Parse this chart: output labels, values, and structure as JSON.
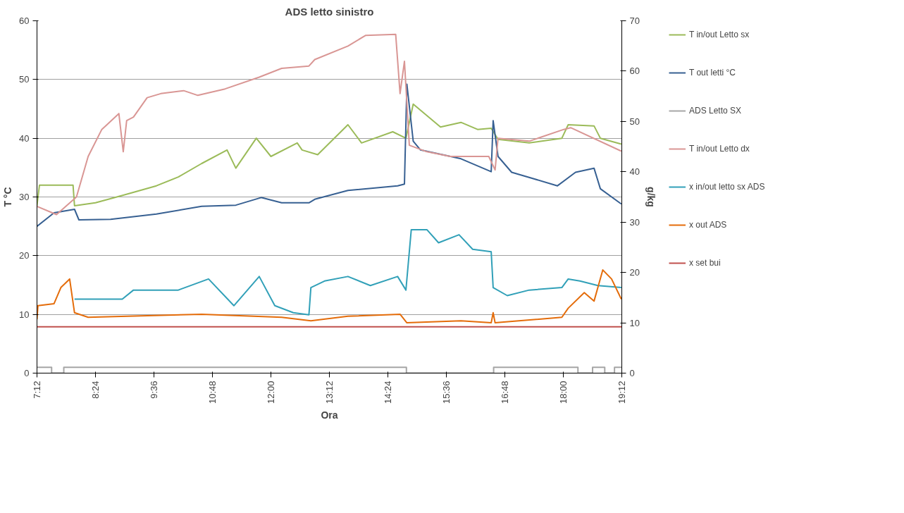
{
  "chart_data": {
    "type": "line",
    "title": "ADS letto sinistro",
    "xlabel": "Ora",
    "ylabel": "T °C",
    "y2label": "g/kg",
    "xlim": [
      7.2,
      19.2
    ],
    "xticks": [
      {
        "value": 7.2,
        "label": "7:12"
      },
      {
        "value": 8.4,
        "label": "8:24"
      },
      {
        "value": 9.6,
        "label": "9:36"
      },
      {
        "value": 10.8,
        "label": "10:48"
      },
      {
        "value": 12.0,
        "label": "12:00"
      },
      {
        "value": 13.2,
        "label": "13:12"
      },
      {
        "value": 14.4,
        "label": "14:24"
      },
      {
        "value": 15.6,
        "label": "15:36"
      },
      {
        "value": 16.8,
        "label": "16:48"
      },
      {
        "value": 18.0,
        "label": "18:00"
      },
      {
        "value": 19.2,
        "label": "19:12"
      }
    ],
    "ylim": [
      0,
      60
    ],
    "yticks": [
      0,
      10,
      20,
      30,
      40,
      50,
      60
    ],
    "y2lim": [
      0,
      70
    ],
    "y2ticks": [
      0,
      10,
      20,
      30,
      40,
      50,
      60,
      70
    ],
    "grid": "y",
    "legend": "right",
    "line_style": "solid",
    "marker": "none",
    "series": [
      {
        "name": "T in/out Letto sx",
        "color": "#9bbb59",
        "x": [
          7.2,
          7.25,
          7.94,
          7.97,
          8.4,
          8.97,
          9.65,
          10.1,
          10.58,
          11.1,
          11.28,
          11.7,
          12.0,
          12.54,
          12.64,
          12.96,
          13.58,
          13.86,
          14.5,
          14.77,
          14.92,
          15.48,
          15.9,
          16.24,
          16.52,
          16.66,
          17.3,
          17.97,
          18.1,
          18.63,
          18.76,
          19.19
        ],
        "values": [
          28.5,
          32,
          32,
          28.5,
          29,
          30.3,
          31.9,
          33.4,
          35.7,
          38,
          34.9,
          40,
          36.9,
          39.2,
          38,
          37.2,
          42.3,
          39.2,
          41.1,
          40,
          45.8,
          41.9,
          42.7,
          41.5,
          41.7,
          39.8,
          39.2,
          40,
          42.3,
          42.1,
          40,
          39
        ]
      },
      {
        "name": "T out letti °C",
        "color": "#376092",
        "x": [
          7.2,
          7.55,
          7.97,
          8.06,
          8.71,
          9.65,
          10.58,
          11.28,
          11.8,
          12.22,
          12.78,
          12.9,
          13.58,
          14.6,
          14.74,
          14.79,
          14.92,
          15.07,
          15.9,
          16.52,
          16.56,
          16.66,
          16.94,
          17.88,
          18.25,
          18.63,
          18.76,
          19.19
        ],
        "values": [
          25,
          27.3,
          27.9,
          26.1,
          26.2,
          27.1,
          28.4,
          28.6,
          29.9,
          29,
          29,
          29.6,
          31.1,
          31.9,
          32.2,
          49.2,
          39.5,
          38,
          36.5,
          34.3,
          43,
          36.9,
          34.2,
          31.9,
          34.2,
          34.9,
          31.4,
          28.8
        ]
      },
      {
        "name": "ADS Letto SX",
        "color": "#a6a6a6",
        "type": "step",
        "x": [
          7.2,
          7.5,
          7.75,
          14.78,
          16.57,
          18.3,
          18.6,
          18.85,
          19.05,
          19.2
        ],
        "values": [
          1,
          0,
          1,
          0,
          1,
          0,
          1,
          0,
          1,
          1
        ]
      },
      {
        "name": "T in/out Letto dx",
        "color": "#d99694",
        "x": [
          7.2,
          7.6,
          8.01,
          8.25,
          8.53,
          8.88,
          8.97,
          9.04,
          9.18,
          9.46,
          9.74,
          10.21,
          10.5,
          11.06,
          11.76,
          12.22,
          12.78,
          12.9,
          13.58,
          13.94,
          14.56,
          14.65,
          14.74,
          14.84,
          15.2,
          15.68,
          16.47,
          16.6,
          16.66,
          17.3,
          18.01,
          18.15,
          19.19
        ],
        "values": [
          28.4,
          27,
          30,
          36.9,
          41.5,
          44.2,
          37.7,
          43,
          43.6,
          46.9,
          47.6,
          48.1,
          47.3,
          48.4,
          50.4,
          51.9,
          52.3,
          53.4,
          55.7,
          57.5,
          57.7,
          47.6,
          53.1,
          38.8,
          37.7,
          36.9,
          36.9,
          34.6,
          40,
          39.5,
          41.5,
          41.8,
          37.8
        ]
      },
      {
        "name": "x in/out letto sx ADS",
        "color": "#31a0b8",
        "axis": "y2",
        "x": [
          7.97,
          8.95,
          9.18,
          10.1,
          10.72,
          11.24,
          11.76,
          12.08,
          12.46,
          12.78,
          12.82,
          13.1,
          13.58,
          14.04,
          14.6,
          14.77,
          14.88,
          15.2,
          15.44,
          15.86,
          16.14,
          16.52,
          16.56,
          16.85,
          17.3,
          17.97,
          18.1,
          18.34,
          18.71,
          19.19
        ],
        "values": [
          14.7,
          14.7,
          16.5,
          16.5,
          18.7,
          13.4,
          19.2,
          13.4,
          12,
          11.6,
          17,
          18.3,
          19.2,
          17.4,
          19.2,
          16.5,
          28.5,
          28.5,
          25.9,
          27.5,
          24.6,
          24.1,
          17,
          15.4,
          16.5,
          17,
          18.7,
          18.3,
          17.4,
          17
        ]
      },
      {
        "name": "x out ADS",
        "color": "#e46c0a",
        "axis": "y2",
        "x": [
          7.2,
          7.22,
          7.55,
          7.69,
          7.87,
          7.97,
          8.25,
          10.58,
          12.22,
          12.82,
          13.58,
          14.65,
          14.79,
          15.9,
          16.52,
          16.56,
          16.6,
          17.97,
          18.1,
          18.43,
          18.63,
          18.81,
          18.99,
          19.19
        ],
        "values": [
          10.7,
          13.4,
          13.8,
          17,
          18.7,
          12,
          11.1,
          11.7,
          11.1,
          10.4,
          11.3,
          11.7,
          10,
          10.4,
          10,
          12,
          10,
          11.1,
          12.9,
          16,
          14.3,
          20.5,
          18.7,
          14.7
        ]
      },
      {
        "name": "x set bui",
        "color": "#c0504d",
        "axis": "y2",
        "x": [
          7.2,
          19.2
        ],
        "values": [
          9.2,
          9.2
        ]
      }
    ]
  }
}
